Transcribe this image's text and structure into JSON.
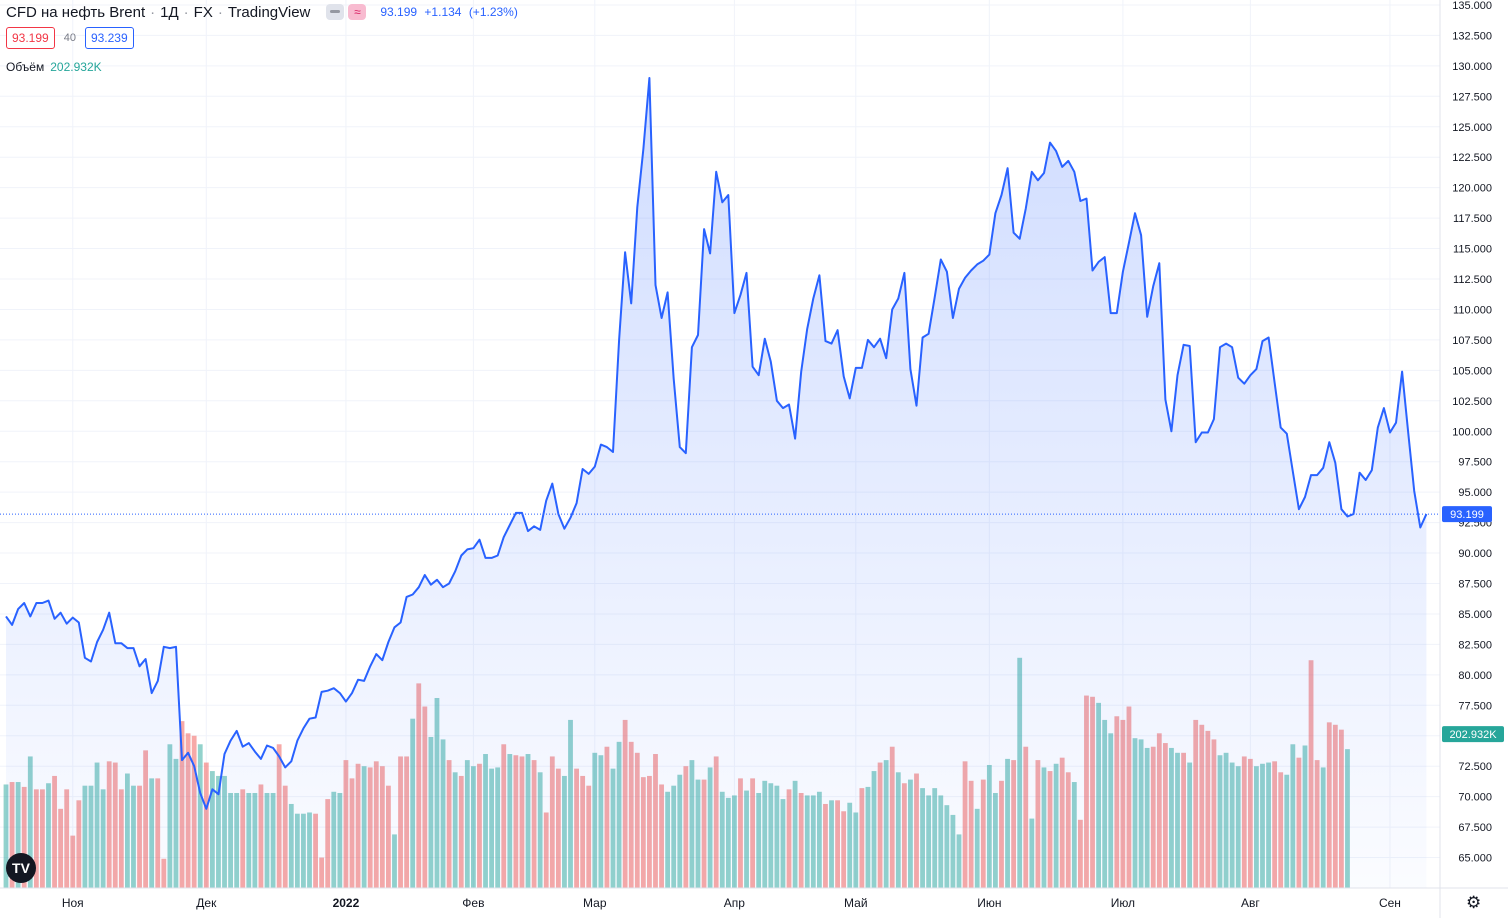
{
  "header": {
    "title": "CFD на нефть Brent",
    "interval": "1Д",
    "exchange": "FX",
    "source": "TradingView",
    "sep": "·",
    "close": "93.199",
    "change": "+1.134",
    "change_pct": "(+1.23%)"
  },
  "trade": {
    "sell": "93.199",
    "spread": "40",
    "buy": "93.239"
  },
  "volume_legend": {
    "label": "Объём",
    "value": "202.932K"
  },
  "icons": {
    "logo": "tradingview-logo-icon",
    "settings": "gear-icon",
    "btn1": "minus-icon",
    "btn2": "approx-icon",
    "btn2_glyph": "≈",
    "logo_glyph": "TV",
    "gear_glyph": "⚙"
  },
  "colors": {
    "line": "#2962ff",
    "vol_up": "#26a69a",
    "vol_down": "#ef5350",
    "grid": "#f0f3fa"
  },
  "chart_data": {
    "type": "area",
    "y_axis": {
      "ylim": [
        62.5,
        136.0
      ],
      "ticks": [
        "65.000",
        "67.500",
        "70.000",
        "72.500",
        "75.000",
        "77.500",
        "80.000",
        "82.500",
        "85.000",
        "87.500",
        "90.000",
        "92.500",
        "95.000",
        "97.500",
        "100.000",
        "102.500",
        "105.000",
        "107.500",
        "110.000",
        "112.500",
        "115.000",
        "117.500",
        "120.000",
        "122.500",
        "125.000",
        "127.500",
        "130.000",
        "132.500",
        "135.000"
      ]
    },
    "x_axis": {
      "labels": [
        {
          "text": "Ноя",
          "index": 11,
          "bold": false
        },
        {
          "text": "Дек",
          "index": 33,
          "bold": false
        },
        {
          "text": "2022",
          "index": 56,
          "bold": true
        },
        {
          "text": "Фев",
          "index": 77,
          "bold": false
        },
        {
          "text": "Мар",
          "index": 97,
          "bold": false
        },
        {
          "text": "Апр",
          "index": 120,
          "bold": false
        },
        {
          "text": "Май",
          "index": 140,
          "bold": false
        },
        {
          "text": "Июн",
          "index": 162,
          "bold": false
        },
        {
          "text": "Июл",
          "index": 184,
          "bold": false
        },
        {
          "text": "Авг",
          "index": 205,
          "bold": false
        },
        {
          "text": "Сен",
          "index": 228,
          "bold": false
        }
      ]
    },
    "last_price": {
      "value": 93.199,
      "label": "93.199"
    },
    "volume_label": "202.932K",
    "price": [
      84.8,
      84.1,
      85.4,
      85.9,
      84.8,
      85.9,
      85.9,
      86.1,
      84.6,
      85.1,
      84.2,
      84.7,
      84.3,
      81.4,
      81.1,
      82.7,
      83.7,
      85.1,
      82.6,
      82.6,
      82.2,
      82.2,
      80.7,
      81.3,
      78.5,
      79.5,
      82.3,
      82.2,
      82.3,
      73.0,
      73.6,
      72.5,
      70.3,
      69.0,
      70.6,
      70.2,
      73.5,
      74.6,
      75.4,
      74.1,
      74.4,
      73.7,
      73.1,
      74.2,
      74.0,
      73.3,
      72.4,
      72.9,
      74.6,
      75.6,
      76.4,
      76.5,
      78.6,
      78.7,
      78.9,
      78.5,
      77.8,
      78.5,
      79.6,
      79.5,
      80.7,
      81.7,
      81.2,
      82.7,
      83.9,
      84.3,
      86.4,
      86.6,
      87.2,
      88.2,
      87.4,
      87.8,
      87.2,
      87.5,
      88.5,
      89.8,
      90.3,
      90.4,
      91.1,
      89.6,
      89.6,
      89.8,
      91.3,
      92.3,
      93.3,
      93.3,
      91.8,
      92.2,
      91.9,
      94.3,
      95.7,
      93.2,
      92.0,
      92.9,
      94.1,
      96.9,
      96.5,
      97.1,
      98.9,
      98.7,
      98.3,
      107.5,
      114.7,
      110.5,
      118.4,
      123.2,
      129.0,
      112.0,
      109.3,
      111.4,
      104.3,
      98.7,
      98.2,
      106.9,
      107.9,
      116.6,
      114.6,
      121.3,
      118.8,
      119.4,
      109.7,
      111.2,
      113.0,
      105.3,
      104.6,
      107.6,
      105.7,
      102.5,
      101.9,
      102.2,
      99.4,
      104.9,
      108.4,
      110.9,
      112.8,
      107.4,
      107.2,
      108.3,
      104.5,
      102.7,
      105.2,
      105.2,
      107.5,
      106.9,
      107.6,
      106.0,
      110.0,
      110.9,
      113.0,
      105.1,
      102.1,
      107.7,
      108.0,
      111.0,
      114.1,
      113.1,
      109.3,
      111.7,
      112.6,
      113.2,
      113.7,
      114.0,
      114.5,
      117.9,
      119.4,
      121.6,
      116.3,
      115.8,
      118.3,
      121.3,
      120.6,
      121.2,
      123.7,
      123.0,
      121.7,
      122.2,
      121.3,
      118.9,
      119.1,
      113.2,
      113.9,
      114.3,
      109.7,
      109.7,
      113.1,
      115.5,
      117.9,
      116.1,
      109.4,
      111.9,
      113.8,
      102.6,
      100.0,
      104.6,
      107.1,
      107.0,
      99.1,
      99.9,
      99.9,
      101.0,
      106.9,
      107.2,
      106.9,
      104.4,
      103.9,
      104.6,
      105.1,
      107.4,
      107.7,
      104.0,
      100.3,
      99.8,
      96.7,
      93.6,
      94.6,
      96.4,
      96.4,
      97.0,
      99.1,
      97.4,
      93.6,
      93.0,
      93.2,
      96.6,
      96.0,
      96.8,
      100.3,
      101.9,
      99.9,
      100.7,
      104.9,
      99.9,
      95.1,
      92.1,
      93.2
    ],
    "volume": [
      {
        "v": 71.0,
        "up": true
      },
      {
        "v": 71.2,
        "up": false
      },
      {
        "v": 71.2,
        "up": true
      },
      {
        "v": 70.8,
        "up": false
      },
      {
        "v": 73.3,
        "up": true
      },
      {
        "v": 70.6,
        "up": false
      },
      {
        "v": 70.6,
        "up": false
      },
      {
        "v": 71.1,
        "up": true
      },
      {
        "v": 71.7,
        "up": false
      },
      {
        "v": 69.0,
        "up": false
      },
      {
        "v": 70.6,
        "up": false
      },
      {
        "v": 66.8,
        "up": false
      },
      {
        "v": 69.7,
        "up": false
      },
      {
        "v": 70.9,
        "up": true
      },
      {
        "v": 70.9,
        "up": true
      },
      {
        "v": 72.8,
        "up": true
      },
      {
        "v": 70.6,
        "up": true
      },
      {
        "v": 72.9,
        "up": false
      },
      {
        "v": 72.8,
        "up": false
      },
      {
        "v": 70.6,
        "up": false
      },
      {
        "v": 71.9,
        "up": true
      },
      {
        "v": 70.9,
        "up": true
      },
      {
        "v": 70.9,
        "up": false
      },
      {
        "v": 73.8,
        "up": false
      },
      {
        "v": 71.5,
        "up": true
      },
      {
        "v": 71.5,
        "up": false
      },
      {
        "v": 64.9,
        "up": false
      },
      {
        "v": 74.3,
        "up": true
      },
      {
        "v": 73.1,
        "up": true
      },
      {
        "v": 76.2,
        "up": false
      },
      {
        "v": 75.2,
        "up": false
      },
      {
        "v": 75.0,
        "up": false
      },
      {
        "v": 74.3,
        "up": true
      },
      {
        "v": 72.8,
        "up": false
      },
      {
        "v": 72.1,
        "up": true
      },
      {
        "v": 71.7,
        "up": true
      },
      {
        "v": 71.7,
        "up": true
      },
      {
        "v": 70.3,
        "up": true
      },
      {
        "v": 70.3,
        "up": true
      },
      {
        "v": 70.6,
        "up": false
      },
      {
        "v": 70.3,
        "up": true
      },
      {
        "v": 70.3,
        "up": true
      },
      {
        "v": 71.0,
        "up": false
      },
      {
        "v": 70.3,
        "up": true
      },
      {
        "v": 70.3,
        "up": true
      },
      {
        "v": 74.3,
        "up": false
      },
      {
        "v": 70.9,
        "up": false
      },
      {
        "v": 69.4,
        "up": true
      },
      {
        "v": 68.6,
        "up": true
      },
      {
        "v": 68.6,
        "up": true
      },
      {
        "v": 68.7,
        "up": true
      },
      {
        "v": 68.6,
        "up": false
      },
      {
        "v": 65.0,
        "up": false
      },
      {
        "v": 69.8,
        "up": false
      },
      {
        "v": 70.4,
        "up": true
      },
      {
        "v": 70.3,
        "up": true
      },
      {
        "v": 73.0,
        "up": false
      },
      {
        "v": 71.5,
        "up": false
      },
      {
        "v": 72.7,
        "up": false
      },
      {
        "v": 72.5,
        "up": true
      },
      {
        "v": 72.4,
        "up": false
      },
      {
        "v": 72.9,
        "up": false
      },
      {
        "v": 72.5,
        "up": false
      },
      {
        "v": 70.9,
        "up": false
      },
      {
        "v": 66.9,
        "up": true
      },
      {
        "v": 73.3,
        "up": false
      },
      {
        "v": 73.3,
        "up": false
      },
      {
        "v": 76.4,
        "up": true
      },
      {
        "v": 79.3,
        "up": false
      },
      {
        "v": 77.4,
        "up": false
      },
      {
        "v": 74.9,
        "up": true
      },
      {
        "v": 78.1,
        "up": true
      },
      {
        "v": 74.7,
        "up": true
      },
      {
        "v": 73.0,
        "up": false
      },
      {
        "v": 72.0,
        "up": true
      },
      {
        "v": 71.7,
        "up": false
      },
      {
        "v": 73.0,
        "up": true
      },
      {
        "v": 72.5,
        "up": true
      },
      {
        "v": 72.7,
        "up": false
      },
      {
        "v": 73.5,
        "up": true
      },
      {
        "v": 72.3,
        "up": true
      },
      {
        "v": 72.4,
        "up": true
      },
      {
        "v": 74.3,
        "up": false
      },
      {
        "v": 73.5,
        "up": true
      },
      {
        "v": 73.4,
        "up": false
      },
      {
        "v": 73.3,
        "up": false
      },
      {
        "v": 73.5,
        "up": true
      },
      {
        "v": 73.0,
        "up": false
      },
      {
        "v": 72.0,
        "up": true
      },
      {
        "v": 68.7,
        "up": false
      },
      {
        "v": 73.3,
        "up": false
      },
      {
        "v": 72.3,
        "up": false
      },
      {
        "v": 71.7,
        "up": true
      },
      {
        "v": 76.3,
        "up": true
      },
      {
        "v": 72.3,
        "up": false
      },
      {
        "v": 71.7,
        "up": false
      },
      {
        "v": 70.9,
        "up": false
      },
      {
        "v": 73.6,
        "up": true
      },
      {
        "v": 73.4,
        "up": true
      },
      {
        "v": 74.1,
        "up": false
      },
      {
        "v": 72.3,
        "up": true
      },
      {
        "v": 74.5,
        "up": true
      },
      {
        "v": 76.3,
        "up": false
      },
      {
        "v": 74.5,
        "up": false
      },
      {
        "v": 73.6,
        "up": false
      },
      {
        "v": 71.6,
        "up": false
      },
      {
        "v": 71.7,
        "up": false
      },
      {
        "v": 73.5,
        "up": false
      },
      {
        "v": 71.0,
        "up": false
      },
      {
        "v": 70.4,
        "up": true
      },
      {
        "v": 70.9,
        "up": true
      },
      {
        "v": 71.8,
        "up": true
      },
      {
        "v": 72.5,
        "up": false
      },
      {
        "v": 73.0,
        "up": true
      },
      {
        "v": 71.4,
        "up": true
      },
      {
        "v": 71.4,
        "up": false
      },
      {
        "v": 72.4,
        "up": true
      },
      {
        "v": 73.3,
        "up": false
      },
      {
        "v": 70.4,
        "up": true
      },
      {
        "v": 69.9,
        "up": true
      },
      {
        "v": 70.1,
        "up": true
      },
      {
        "v": 71.5,
        "up": false
      },
      {
        "v": 70.5,
        "up": true
      },
      {
        "v": 71.5,
        "up": false
      },
      {
        "v": 70.3,
        "up": true
      },
      {
        "v": 71.3,
        "up": true
      },
      {
        "v": 71.1,
        "up": true
      },
      {
        "v": 70.9,
        "up": true
      },
      {
        "v": 69.8,
        "up": true
      },
      {
        "v": 70.6,
        "up": false
      },
      {
        "v": 71.3,
        "up": true
      },
      {
        "v": 70.3,
        "up": false
      },
      {
        "v": 70.1,
        "up": true
      },
      {
        "v": 70.1,
        "up": true
      },
      {
        "v": 70.4,
        "up": true
      },
      {
        "v": 69.4,
        "up": false
      },
      {
        "v": 69.7,
        "up": true
      },
      {
        "v": 69.7,
        "up": false
      },
      {
        "v": 68.8,
        "up": false
      },
      {
        "v": 69.5,
        "up": true
      },
      {
        "v": 68.7,
        "up": true
      },
      {
        "v": 70.7,
        "up": false
      },
      {
        "v": 70.8,
        "up": true
      },
      {
        "v": 72.1,
        "up": true
      },
      {
        "v": 72.8,
        "up": false
      },
      {
        "v": 73.0,
        "up": true
      },
      {
        "v": 74.1,
        "up": false
      },
      {
        "v": 72.0,
        "up": true
      },
      {
        "v": 71.1,
        "up": false
      },
      {
        "v": 71.4,
        "up": true
      },
      {
        "v": 71.9,
        "up": false
      },
      {
        "v": 70.7,
        "up": true
      },
      {
        "v": 70.1,
        "up": true
      },
      {
        "v": 70.7,
        "up": true
      },
      {
        "v": 70.1,
        "up": true
      },
      {
        "v": 69.3,
        "up": true
      },
      {
        "v": 68.5,
        "up": true
      },
      {
        "v": 66.9,
        "up": true
      },
      {
        "v": 72.9,
        "up": false
      },
      {
        "v": 71.3,
        "up": false
      },
      {
        "v": 69.0,
        "up": true
      },
      {
        "v": 71.4,
        "up": false
      },
      {
        "v": 72.6,
        "up": true
      },
      {
        "v": 70.3,
        "up": true
      },
      {
        "v": 71.3,
        "up": false
      },
      {
        "v": 73.1,
        "up": true
      },
      {
        "v": 73.0,
        "up": false
      },
      {
        "v": 81.4,
        "up": true
      },
      {
        "v": 74.1,
        "up": false
      },
      {
        "v": 68.2,
        "up": true
      },
      {
        "v": 73.0,
        "up": false
      },
      {
        "v": 72.4,
        "up": true
      },
      {
        "v": 72.1,
        "up": false
      },
      {
        "v": 72.7,
        "up": true
      },
      {
        "v": 73.2,
        "up": false
      },
      {
        "v": 72.0,
        "up": false
      },
      {
        "v": 71.2,
        "up": true
      },
      {
        "v": 68.1,
        "up": false
      },
      {
        "v": 78.3,
        "up": false
      },
      {
        "v": 78.2,
        "up": false
      },
      {
        "v": 77.7,
        "up": true
      },
      {
        "v": 76.3,
        "up": true
      },
      {
        "v": 75.2,
        "up": true
      },
      {
        "v": 76.6,
        "up": false
      },
      {
        "v": 76.3,
        "up": false
      },
      {
        "v": 77.4,
        "up": false
      },
      {
        "v": 74.8,
        "up": true
      },
      {
        "v": 74.7,
        "up": true
      },
      {
        "v": 74.0,
        "up": true
      },
      {
        "v": 74.1,
        "up": false
      },
      {
        "v": 75.2,
        "up": false
      },
      {
        "v": 74.4,
        "up": false
      },
      {
        "v": 74.0,
        "up": true
      },
      {
        "v": 73.6,
        "up": true
      },
      {
        "v": 73.6,
        "up": false
      },
      {
        "v": 72.8,
        "up": true
      },
      {
        "v": 76.3,
        "up": false
      },
      {
        "v": 75.9,
        "up": false
      },
      {
        "v": 75.4,
        "up": false
      },
      {
        "v": 74.7,
        "up": false
      },
      {
        "v": 73.4,
        "up": true
      },
      {
        "v": 73.6,
        "up": true
      },
      {
        "v": 72.8,
        "up": true
      },
      {
        "v": 72.5,
        "up": true
      },
      {
        "v": 73.3,
        "up": false
      },
      {
        "v": 73.1,
        "up": false
      },
      {
        "v": 72.5,
        "up": true
      },
      {
        "v": 72.7,
        "up": true
      },
      {
        "v": 72.8,
        "up": true
      },
      {
        "v": 72.9,
        "up": false
      },
      {
        "v": 72.0,
        "up": false
      },
      {
        "v": 71.8,
        "up": true
      },
      {
        "v": 74.3,
        "up": true
      },
      {
        "v": 73.2,
        "up": false
      },
      {
        "v": 74.2,
        "up": true
      },
      {
        "v": 81.2,
        "up": false
      },
      {
        "v": 73.0,
        "up": false
      },
      {
        "v": 72.4,
        "up": true
      },
      {
        "v": 76.1,
        "up": false
      },
      {
        "v": 75.9,
        "up": false
      },
      {
        "v": 75.5,
        "up": false
      },
      {
        "v": 73.9,
        "up": true
      }
    ]
  }
}
